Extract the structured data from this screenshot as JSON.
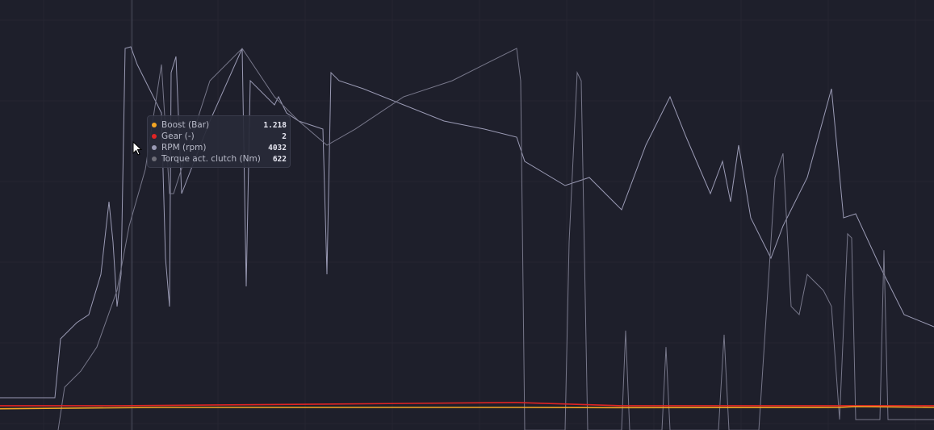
{
  "tooltip": {
    "rows": [
      {
        "label": "Boost (Bar)",
        "value": "1.218",
        "color": "#f5a623"
      },
      {
        "label": "Gear (-)",
        "value": "2",
        "color": "#e02424"
      },
      {
        "label": "RPM (rpm)",
        "value": "4032",
        "color": "#9a9ab4"
      },
      {
        "label": "Torque act. clutch (Nm)",
        "value": "622",
        "color": "#6e6e78"
      }
    ]
  },
  "chart_data": {
    "type": "line",
    "grid": true,
    "legend": "none",
    "background": "#1e1f2b",
    "series": [
      {
        "name": "RPM (rpm)",
        "color": "#9a9ab4",
        "ylim": [
          0,
          8000
        ],
        "x": [
          0,
          68,
          75,
          95,
          110,
          125,
          135,
          140,
          145,
          150,
          155,
          162,
          170,
          200,
          205,
          210,
          212,
          218,
          225,
          260,
          300,
          305,
          310,
          340,
          345,
          355,
          370,
          400,
          405,
          410,
          420,
          450,
          500,
          550,
          600,
          640,
          650,
          700,
          730,
          770,
          800,
          830,
          850,
          880,
          895,
          905,
          915,
          930,
          955,
          970,
          1000,
          1030,
          1045,
          1060,
          1090,
          1120,
          1157
        ],
        "y": [
          221,
          221,
          1373,
          1689,
          1846,
          2635,
          4055,
          3266,
          2004,
          2635,
          7053,
          7085,
          6738,
          5791,
          2951,
          2004,
          6580,
          6896,
          4213,
          5633,
          7053,
          2398,
          6422,
          5949,
          6107,
          5791,
          5633,
          5476,
          2635,
          6580,
          6422,
          6265,
          5949,
          5633,
          5476,
          5318,
          4844,
          4371,
          4529,
          3898,
          5160,
          6107,
          5318,
          4213,
          4844,
          4055,
          5160,
          3740,
          2951,
          3582,
          4529,
          6265,
          3740,
          3819,
          2793,
          1846,
          1610
        ]
      },
      {
        "name": "Torque act. clutch (Nm)",
        "color": "#77778a",
        "ylim": [
          0,
          1200
        ],
        "x": [
          72,
          80,
          100,
          120,
          145,
          160,
          180,
          200,
          210,
          215,
          260,
          300,
          340,
          370,
          405,
          440,
          500,
          560,
          600,
          640,
          645,
          650,
          700,
          705,
          715,
          720,
          728,
          770,
          775,
          780,
          820,
          825,
          830,
          890,
          897,
          903,
          940,
          955,
          960,
          970,
          980,
          990,
          1000,
          1020,
          1030,
          1040,
          1050,
          1055,
          1060,
          1090,
          1095,
          1100,
          1157
        ],
        "y": [
          -62,
          64,
          111,
          182,
          348,
          537,
          703,
          1011,
          632,
          632,
          963,
          1058,
          916,
          845,
          774,
          821,
          916,
          963,
          1011,
          1058,
          963,
          -62,
          -62,
          490,
          987,
          963,
          -62,
          -62,
          230,
          -62,
          -62,
          182,
          -62,
          -62,
          218,
          -62,
          -62,
          490,
          679,
          750,
          301,
          277,
          395,
          348,
          301,
          -31,
          514,
          502,
          -31,
          -31,
          466,
          -31,
          -31
        ]
      },
      {
        "name": "Gear (-)",
        "color": "#e02424",
        "ylim": [
          0,
          250
        ],
        "x": [
          0,
          150,
          400,
          640,
          770,
          1157
        ],
        "y": [
          2,
          2,
          3,
          4,
          2,
          2
        ]
      },
      {
        "name": "Boost (Bar)",
        "color": "#f5a623",
        "ylim": [
          0,
          300
        ],
        "x": [
          0,
          200,
          640,
          760,
          1040,
          1060,
          1157
        ],
        "y": [
          0.2,
          1.2,
          1.2,
          1.0,
          1.2,
          1.8,
          1.2
        ]
      }
    ]
  }
}
